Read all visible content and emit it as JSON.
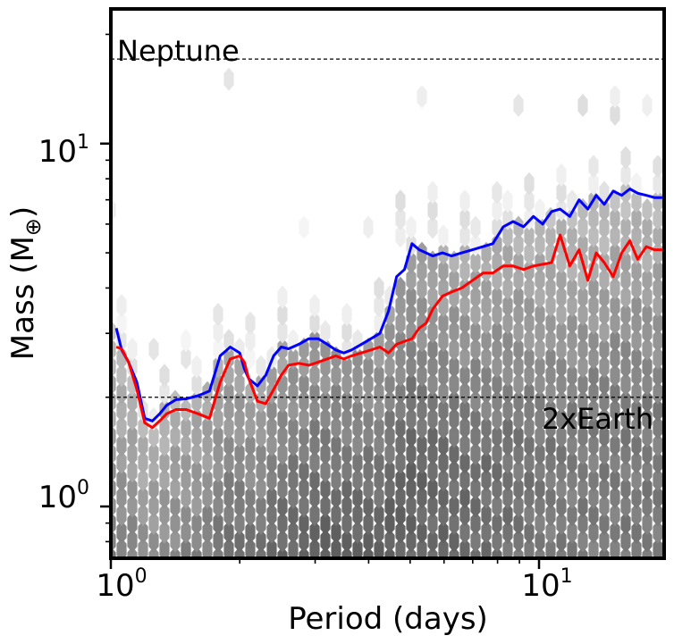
{
  "chart_data": {
    "type": "line",
    "xscale": "log",
    "yscale": "log",
    "xlim": [
      1.0,
      19.6
    ],
    "ylim": [
      0.72,
      23.5
    ],
    "xlabel": "Period (days)",
    "ylabel_main": "Mass (M",
    "ylabel_symbol": "⊕",
    "ylabel_close": ")",
    "x_ticks": [
      {
        "value": 1,
        "base": "10",
        "exp": "0"
      },
      {
        "value": 10,
        "base": "10",
        "exp": "1"
      }
    ],
    "y_ticks": [
      {
        "value": 1,
        "base": "10",
        "exp": "0"
      },
      {
        "value": 10,
        "base": "10",
        "exp": "1"
      }
    ],
    "reference_lines": [
      {
        "label": "Neptune",
        "y": 17.1,
        "label_anchor": "left"
      },
      {
        "label": "2xEarth",
        "y": 2.0,
        "label_anchor": "right"
      }
    ],
    "background": {
      "type": "hexbin density",
      "colormap": "greys"
    },
    "series": [
      {
        "name": "blue",
        "color": "#0000ff",
        "x": [
          1.03,
          1.06,
          1.1,
          1.15,
          1.2,
          1.25,
          1.3,
          1.35,
          1.42,
          1.5,
          1.6,
          1.7,
          1.8,
          1.9,
          2.0,
          2.05,
          2.1,
          2.2,
          2.3,
          2.4,
          2.5,
          2.6,
          2.75,
          2.9,
          3.05,
          3.2,
          3.35,
          3.5,
          3.65,
          3.85,
          4.05,
          4.25,
          4.45,
          4.65,
          4.85,
          5.05,
          5.25,
          5.45,
          5.65,
          5.95,
          6.25,
          6.6,
          7.0,
          7.4,
          7.8,
          8.25,
          8.7,
          9.2,
          9.7,
          10.2,
          10.7,
          11.2,
          11.8,
          12.4,
          13.0,
          13.6,
          14.2,
          14.9,
          15.6,
          16.3,
          17.0,
          17.8,
          18.6,
          19.4
        ],
        "y": [
          3.1,
          2.7,
          2.5,
          2.2,
          1.75,
          1.72,
          1.8,
          1.9,
          1.97,
          1.98,
          2.02,
          2.08,
          2.6,
          2.75,
          2.65,
          2.4,
          2.25,
          2.15,
          2.3,
          2.6,
          2.75,
          2.72,
          2.8,
          2.9,
          2.9,
          2.8,
          2.7,
          2.65,
          2.7,
          2.8,
          2.9,
          3.0,
          3.45,
          4.3,
          4.5,
          5.3,
          5.1,
          5.0,
          4.9,
          5.0,
          4.9,
          5.0,
          5.1,
          5.2,
          5.3,
          5.9,
          6.1,
          5.9,
          6.3,
          6.0,
          6.5,
          6.6,
          6.3,
          7.0,
          6.6,
          7.2,
          6.8,
          7.4,
          7.2,
          7.5,
          7.3,
          7.2,
          7.1,
          7.1
        ]
      },
      {
        "name": "red",
        "color": "#ff0000",
        "x": [
          1.03,
          1.06,
          1.1,
          1.15,
          1.2,
          1.25,
          1.3,
          1.35,
          1.42,
          1.5,
          1.6,
          1.7,
          1.8,
          1.9,
          2.0,
          2.05,
          2.1,
          2.2,
          2.3,
          2.4,
          2.5,
          2.6,
          2.75,
          2.9,
          3.05,
          3.2,
          3.35,
          3.5,
          3.65,
          3.85,
          4.05,
          4.25,
          4.45,
          4.65,
          4.85,
          5.05,
          5.25,
          5.45,
          5.65,
          5.95,
          6.25,
          6.6,
          7.0,
          7.4,
          7.8,
          8.25,
          8.7,
          9.2,
          9.7,
          10.2,
          10.7,
          11.2,
          11.8,
          12.4,
          13.0,
          13.6,
          14.2,
          14.9,
          15.6,
          16.3,
          17.0,
          17.8,
          18.6,
          19.4
        ],
        "y": [
          2.75,
          2.72,
          2.5,
          2.1,
          1.7,
          1.65,
          1.72,
          1.8,
          1.85,
          1.85,
          1.8,
          1.75,
          2.2,
          2.55,
          2.6,
          2.5,
          2.25,
          1.95,
          1.92,
          2.1,
          2.3,
          2.45,
          2.48,
          2.45,
          2.5,
          2.55,
          2.6,
          2.55,
          2.6,
          2.65,
          2.7,
          2.75,
          2.65,
          2.8,
          2.85,
          2.9,
          3.1,
          3.2,
          3.5,
          3.8,
          3.9,
          4.0,
          4.2,
          4.4,
          4.4,
          4.6,
          4.6,
          4.5,
          4.6,
          4.65,
          4.7,
          5.6,
          4.6,
          5.1,
          4.2,
          5.0,
          4.7,
          4.3,
          5.0,
          5.4,
          4.8,
          5.2,
          5.1,
          5.1
        ]
      }
    ]
  }
}
